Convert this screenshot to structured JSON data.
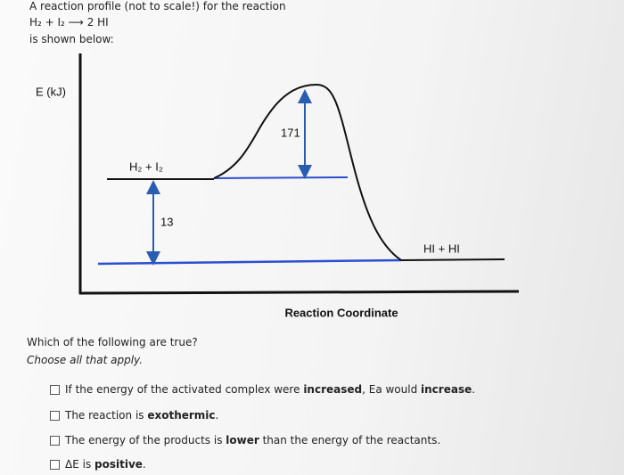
{
  "header": {
    "lines": [
      "A reaction profile (not to scale!) for the reaction",
      "H₂ + I₂ ⟶ 2 HI",
      "is shown below:"
    ]
  },
  "diagram": {
    "y_axis_label": "E (kJ)",
    "reactants_label": "H₂ + I₂",
    "activation_label": "171",
    "delta_label": "13",
    "products_label": "HI + HI",
    "x_axis_label": "Reaction Coordinate"
  },
  "question": {
    "prompt": "Which of the following are true?",
    "instruction": "Choose all that apply.",
    "options": [
      {
        "segments": [
          {
            "text": "If the energy of the activated complex were ",
            "bold": false
          },
          {
            "text": "increased",
            "bold": true
          },
          {
            "text": ", Ea would ",
            "bold": false
          },
          {
            "text": "increase",
            "bold": true
          },
          {
            "text": ".",
            "bold": false
          }
        ]
      },
      {
        "segments": [
          {
            "text": "The reaction is ",
            "bold": false
          },
          {
            "text": "exothermic",
            "bold": true
          },
          {
            "text": ".",
            "bold": false
          }
        ]
      },
      {
        "segments": [
          {
            "text": "The energy of the products is ",
            "bold": false
          },
          {
            "text": "lower",
            "bold": true
          },
          {
            "text": " than the energy of the reactants.",
            "bold": false
          }
        ]
      },
      {
        "segments": [
          {
            "text": "ΔE is ",
            "bold": false
          },
          {
            "text": "positive",
            "bold": true
          },
          {
            "text": ".",
            "bold": false
          }
        ]
      }
    ]
  }
}
